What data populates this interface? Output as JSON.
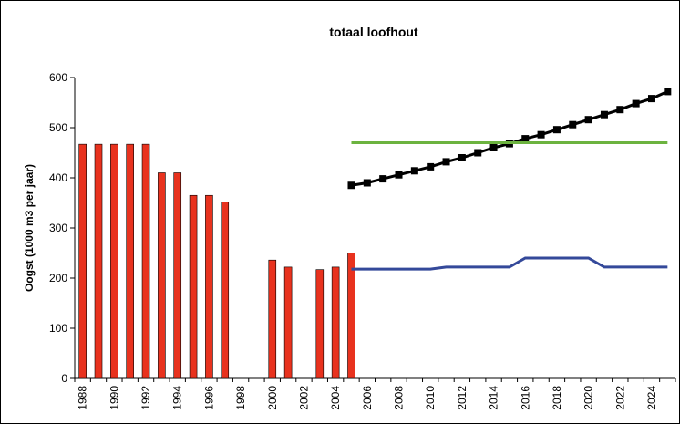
{
  "chart_data": {
    "type": "combo",
    "title": "totaal loofhout",
    "y_label": "Oogst (1000 m3 per jaar)",
    "categories": [
      "1988",
      null,
      "1990",
      null,
      "1992",
      null,
      "1994",
      null,
      "1996",
      null,
      "1998",
      null,
      "2000",
      null,
      "2002",
      null,
      "2004",
      null,
      "2006",
      null,
      "2008",
      null,
      "2010",
      null,
      "2012",
      null,
      "2014",
      null,
      "2016",
      null,
      "2018",
      null,
      "2020",
      null,
      "2022",
      null,
      "2024",
      null
    ],
    "ylim": [
      0,
      600
    ],
    "yticks": [
      0,
      100,
      200,
      300,
      400,
      500,
      600
    ],
    "grid": false,
    "series": [
      {
        "type": "bar",
        "color": "#e8321e",
        "values": [
          467,
          467,
          467,
          467,
          467,
          410,
          410,
          365,
          365,
          352,
          null,
          null,
          236,
          222,
          null,
          217,
          222,
          250,
          null,
          null,
          null,
          null,
          null,
          null,
          null,
          null,
          null,
          null,
          null,
          null,
          null,
          null,
          null,
          null,
          null,
          null,
          null,
          null
        ]
      },
      {
        "type": "line",
        "color": "#000000",
        "marker": "square",
        "values": [
          null,
          null,
          null,
          null,
          null,
          null,
          null,
          null,
          null,
          null,
          null,
          null,
          null,
          null,
          null,
          null,
          null,
          385,
          390,
          398,
          406,
          414,
          422,
          432,
          440,
          450,
          460,
          468,
          478,
          486,
          496,
          506,
          516,
          526,
          536,
          548,
          558,
          572
        ]
      },
      {
        "type": "line",
        "color": "#6cb33f",
        "values": [
          null,
          null,
          null,
          null,
          null,
          null,
          null,
          null,
          null,
          null,
          null,
          null,
          null,
          null,
          null,
          null,
          null,
          470,
          470,
          470,
          470,
          470,
          470,
          470,
          470,
          470,
          470,
          470,
          470,
          470,
          470,
          470,
          470,
          470,
          470,
          470,
          470,
          470
        ]
      },
      {
        "type": "line",
        "color": "#34499a",
        "values": [
          null,
          null,
          null,
          null,
          null,
          null,
          null,
          null,
          null,
          null,
          null,
          null,
          null,
          null,
          null,
          null,
          null,
          218,
          218,
          218,
          218,
          218,
          218,
          222,
          222,
          222,
          222,
          222,
          240,
          240,
          240,
          240,
          240,
          222,
          222,
          222,
          222,
          222
        ]
      }
    ]
  }
}
